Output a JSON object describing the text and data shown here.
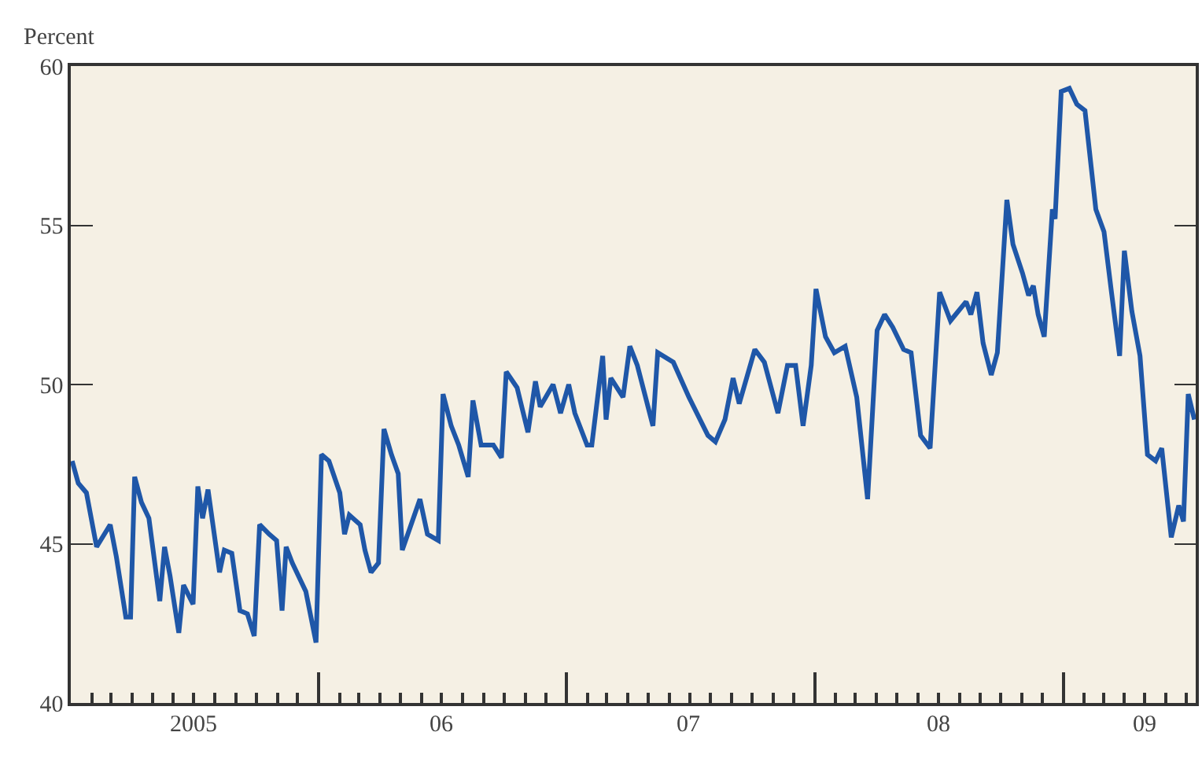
{
  "chart_data": {
    "type": "line",
    "ylabel": "Percent",
    "ylim": [
      40,
      60
    ],
    "yticks": [
      40,
      45,
      50,
      55,
      60
    ],
    "xlim": [
      "2005-01-01",
      "2009-07-15"
    ],
    "xticks": [
      {
        "value": "2005-07-01",
        "label": "2005"
      },
      {
        "value": "2006-01-01",
        "label": null
      },
      {
        "value": "2006-07-01",
        "label": "06"
      },
      {
        "value": "2007-01-01",
        "label": null
      },
      {
        "value": "2007-07-01",
        "label": "07"
      },
      {
        "value": "2008-01-01",
        "label": null
      },
      {
        "value": "2008-07-01",
        "label": "08"
      },
      {
        "value": "2009-01-01",
        "label": null
      },
      {
        "value": "2009-05-01",
        "label": "09"
      }
    ],
    "grid": false,
    "legend": false,
    "marker": "none",
    "line_style": "solid",
    "series": [
      {
        "color": "#1f57a8",
        "x": [
          "2005-01-03",
          "2005-01-12",
          "2005-01-24",
          "2005-02-08",
          "2005-02-28",
          "2005-03-09",
          "2005-03-23",
          "2005-03-30",
          "2005-04-05",
          "2005-04-15",
          "2005-04-26",
          "2005-05-12",
          "2005-05-19",
          "2005-05-27",
          "2005-06-09",
          "2005-06-16",
          "2005-06-30",
          "2005-07-07",
          "2005-07-14",
          "2005-07-22",
          "2005-08-08",
          "2005-08-15",
          "2005-08-26",
          "2005-09-07",
          "2005-09-18",
          "2005-09-28",
          "2005-10-06",
          "2005-10-20",
          "2005-10-31",
          "2005-11-08",
          "2005-11-14",
          "2005-11-23",
          "2005-12-13",
          "2005-12-28",
          "2006-01-05",
          "2006-01-16",
          "2006-02-01",
          "2006-02-08",
          "2006-02-15",
          "2006-03-03",
          "2006-03-10",
          "2006-03-19",
          "2006-03-30",
          "2006-04-07",
          "2006-04-18",
          "2006-04-28",
          "2006-05-04",
          "2006-05-30",
          "2006-06-10",
          "2006-06-26",
          "2006-07-03",
          "2006-07-15",
          "2006-07-26",
          "2006-08-09",
          "2006-08-16",
          "2006-08-28",
          "2006-09-15",
          "2006-09-27",
          "2006-10-04",
          "2006-10-20",
          "2006-11-05",
          "2006-11-16",
          "2006-11-23",
          "2006-12-12",
          "2006-12-23",
          "2007-01-04",
          "2007-01-13",
          "2007-01-31",
          "2007-02-07",
          "2007-02-23",
          "2007-02-28",
          "2007-03-07",
          "2007-03-25",
          "2007-04-04",
          "2007-04-15",
          "2007-05-08",
          "2007-05-15",
          "2007-06-07",
          "2007-06-30",
          "2007-07-28",
          "2007-08-08",
          "2007-08-22",
          "2007-09-03",
          "2007-09-12",
          "2007-10-05",
          "2007-10-19",
          "2007-11-08",
          "2007-11-22",
          "2007-12-04",
          "2007-12-15",
          "2007-12-27",
          "2008-01-03",
          "2008-01-17",
          "2008-01-30",
          "2008-02-15",
          "2008-03-03",
          "2008-03-19",
          "2008-04-02",
          "2008-04-13",
          "2008-04-25",
          "2008-05-11",
          "2008-05-22",
          "2008-06-05",
          "2008-06-19",
          "2008-07-03",
          "2008-07-19",
          "2008-08-11",
          "2008-08-18",
          "2008-08-27",
          "2008-09-05",
          "2008-09-17",
          "2008-09-26",
          "2008-10-10",
          "2008-10-19",
          "2008-11-02",
          "2008-11-11",
          "2008-11-18",
          "2008-11-25",
          "2008-12-04",
          "2008-12-16",
          "2008-12-20",
          "2008-12-29",
          "2009-01-10",
          "2009-01-21",
          "2009-02-02",
          "2009-02-18",
          "2009-03-02",
          "2009-03-13",
          "2009-03-25",
          "2009-04-01",
          "2009-04-12",
          "2009-04-24",
          "2009-05-05",
          "2009-05-17",
          "2009-05-26",
          "2009-06-09",
          "2009-06-20",
          "2009-06-27",
          "2009-07-04",
          "2009-07-13"
        ],
        "values": [
          47.6,
          46.9,
          46.6,
          44.9,
          45.6,
          44.6,
          42.7,
          42.7,
          47.1,
          46.3,
          45.8,
          43.2,
          44.9,
          44.0,
          42.2,
          43.7,
          43.1,
          46.8,
          45.8,
          46.7,
          44.1,
          44.8,
          44.7,
          42.9,
          42.8,
          42.1,
          45.6,
          45.3,
          45.1,
          42.9,
          44.9,
          44.4,
          43.5,
          41.9,
          47.8,
          47.6,
          46.6,
          45.3,
          45.9,
          45.6,
          44.8,
          44.1,
          44.4,
          48.6,
          47.8,
          47.2,
          44.8,
          46.4,
          45.3,
          45.1,
          49.7,
          48.7,
          48.1,
          47.1,
          49.5,
          48.1,
          48.1,
          47.7,
          50.4,
          49.9,
          48.5,
          50.1,
          49.3,
          50.0,
          49.1,
          50.0,
          49.1,
          48.1,
          48.1,
          50.9,
          48.9,
          50.2,
          49.6,
          51.2,
          50.6,
          48.7,
          51.0,
          50.7,
          49.6,
          48.4,
          48.2,
          48.9,
          50.2,
          49.4,
          51.1,
          50.7,
          49.1,
          50.6,
          50.6,
          48.7,
          50.6,
          53.0,
          51.5,
          51.0,
          51.2,
          49.6,
          46.4,
          51.7,
          52.2,
          51.8,
          51.1,
          51.0,
          48.4,
          48.0,
          52.9,
          52.0,
          52.6,
          52.2,
          52.9,
          51.3,
          50.3,
          51.0,
          55.8,
          54.4,
          53.5,
          52.8,
          53.1,
          52.2,
          51.5,
          55.5,
          55.2,
          59.2,
          59.3,
          58.8,
          58.6,
          55.5,
          54.8,
          52.9,
          50.9,
          54.2,
          52.3,
          50.9,
          47.8,
          47.6,
          48.0,
          45.2,
          46.2,
          45.7,
          49.7,
          48.9
        ]
      }
    ]
  }
}
